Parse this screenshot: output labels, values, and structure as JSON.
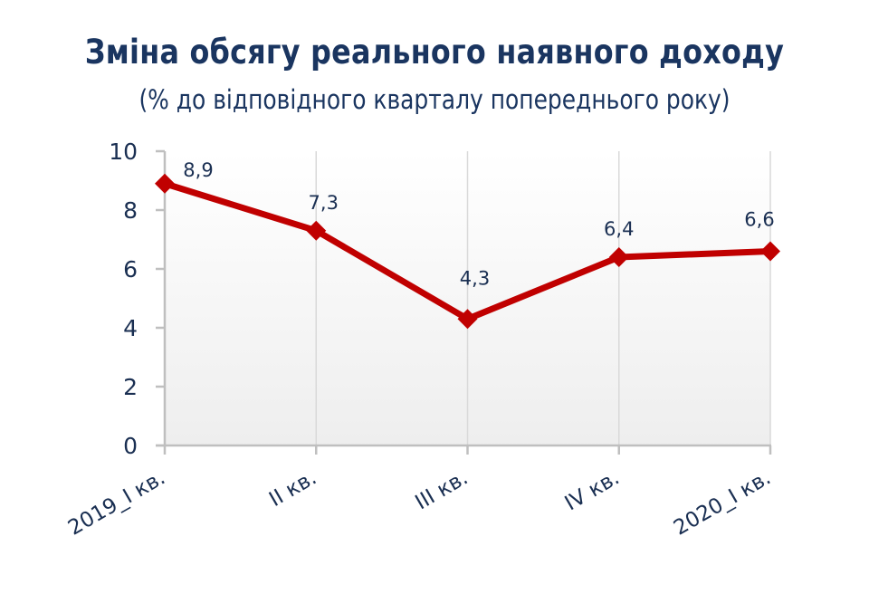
{
  "title": "Зміна обсягу реального наявного доходу",
  "subtitle": "(% до відповідного кварталу попереднього року)",
  "colors": {
    "line": "#c00000",
    "text": "#1a3560",
    "axis": "#bfbfbf",
    "grid": "#d9d9d9"
  },
  "chart_data": {
    "type": "line",
    "title": "Зміна обсягу реального наявного доходу",
    "subtitle": "(% до відповідного кварталу попереднього року)",
    "categories": [
      "2019_I кв.",
      "II кв.",
      "III кв.",
      "IV кв.",
      "2020_I кв."
    ],
    "series": [
      {
        "name": "Зміна обсягу реального наявного доходу",
        "values": [
          8.9,
          7.3,
          4.3,
          6.4,
          6.6
        ],
        "labels": [
          "8,9",
          "7,3",
          "4,3",
          "6,4",
          "6,6"
        ],
        "color": "#c00000",
        "marker": "diamond"
      }
    ],
    "xlabel": "",
    "ylabel": "",
    "ylim": [
      0,
      10
    ],
    "yticks": [
      0,
      2,
      4,
      6,
      8,
      10
    ],
    "yticklabels": [
      "0",
      "2",
      "4",
      "6",
      "8",
      "10"
    ],
    "grid": "vertical",
    "legend": "none"
  }
}
